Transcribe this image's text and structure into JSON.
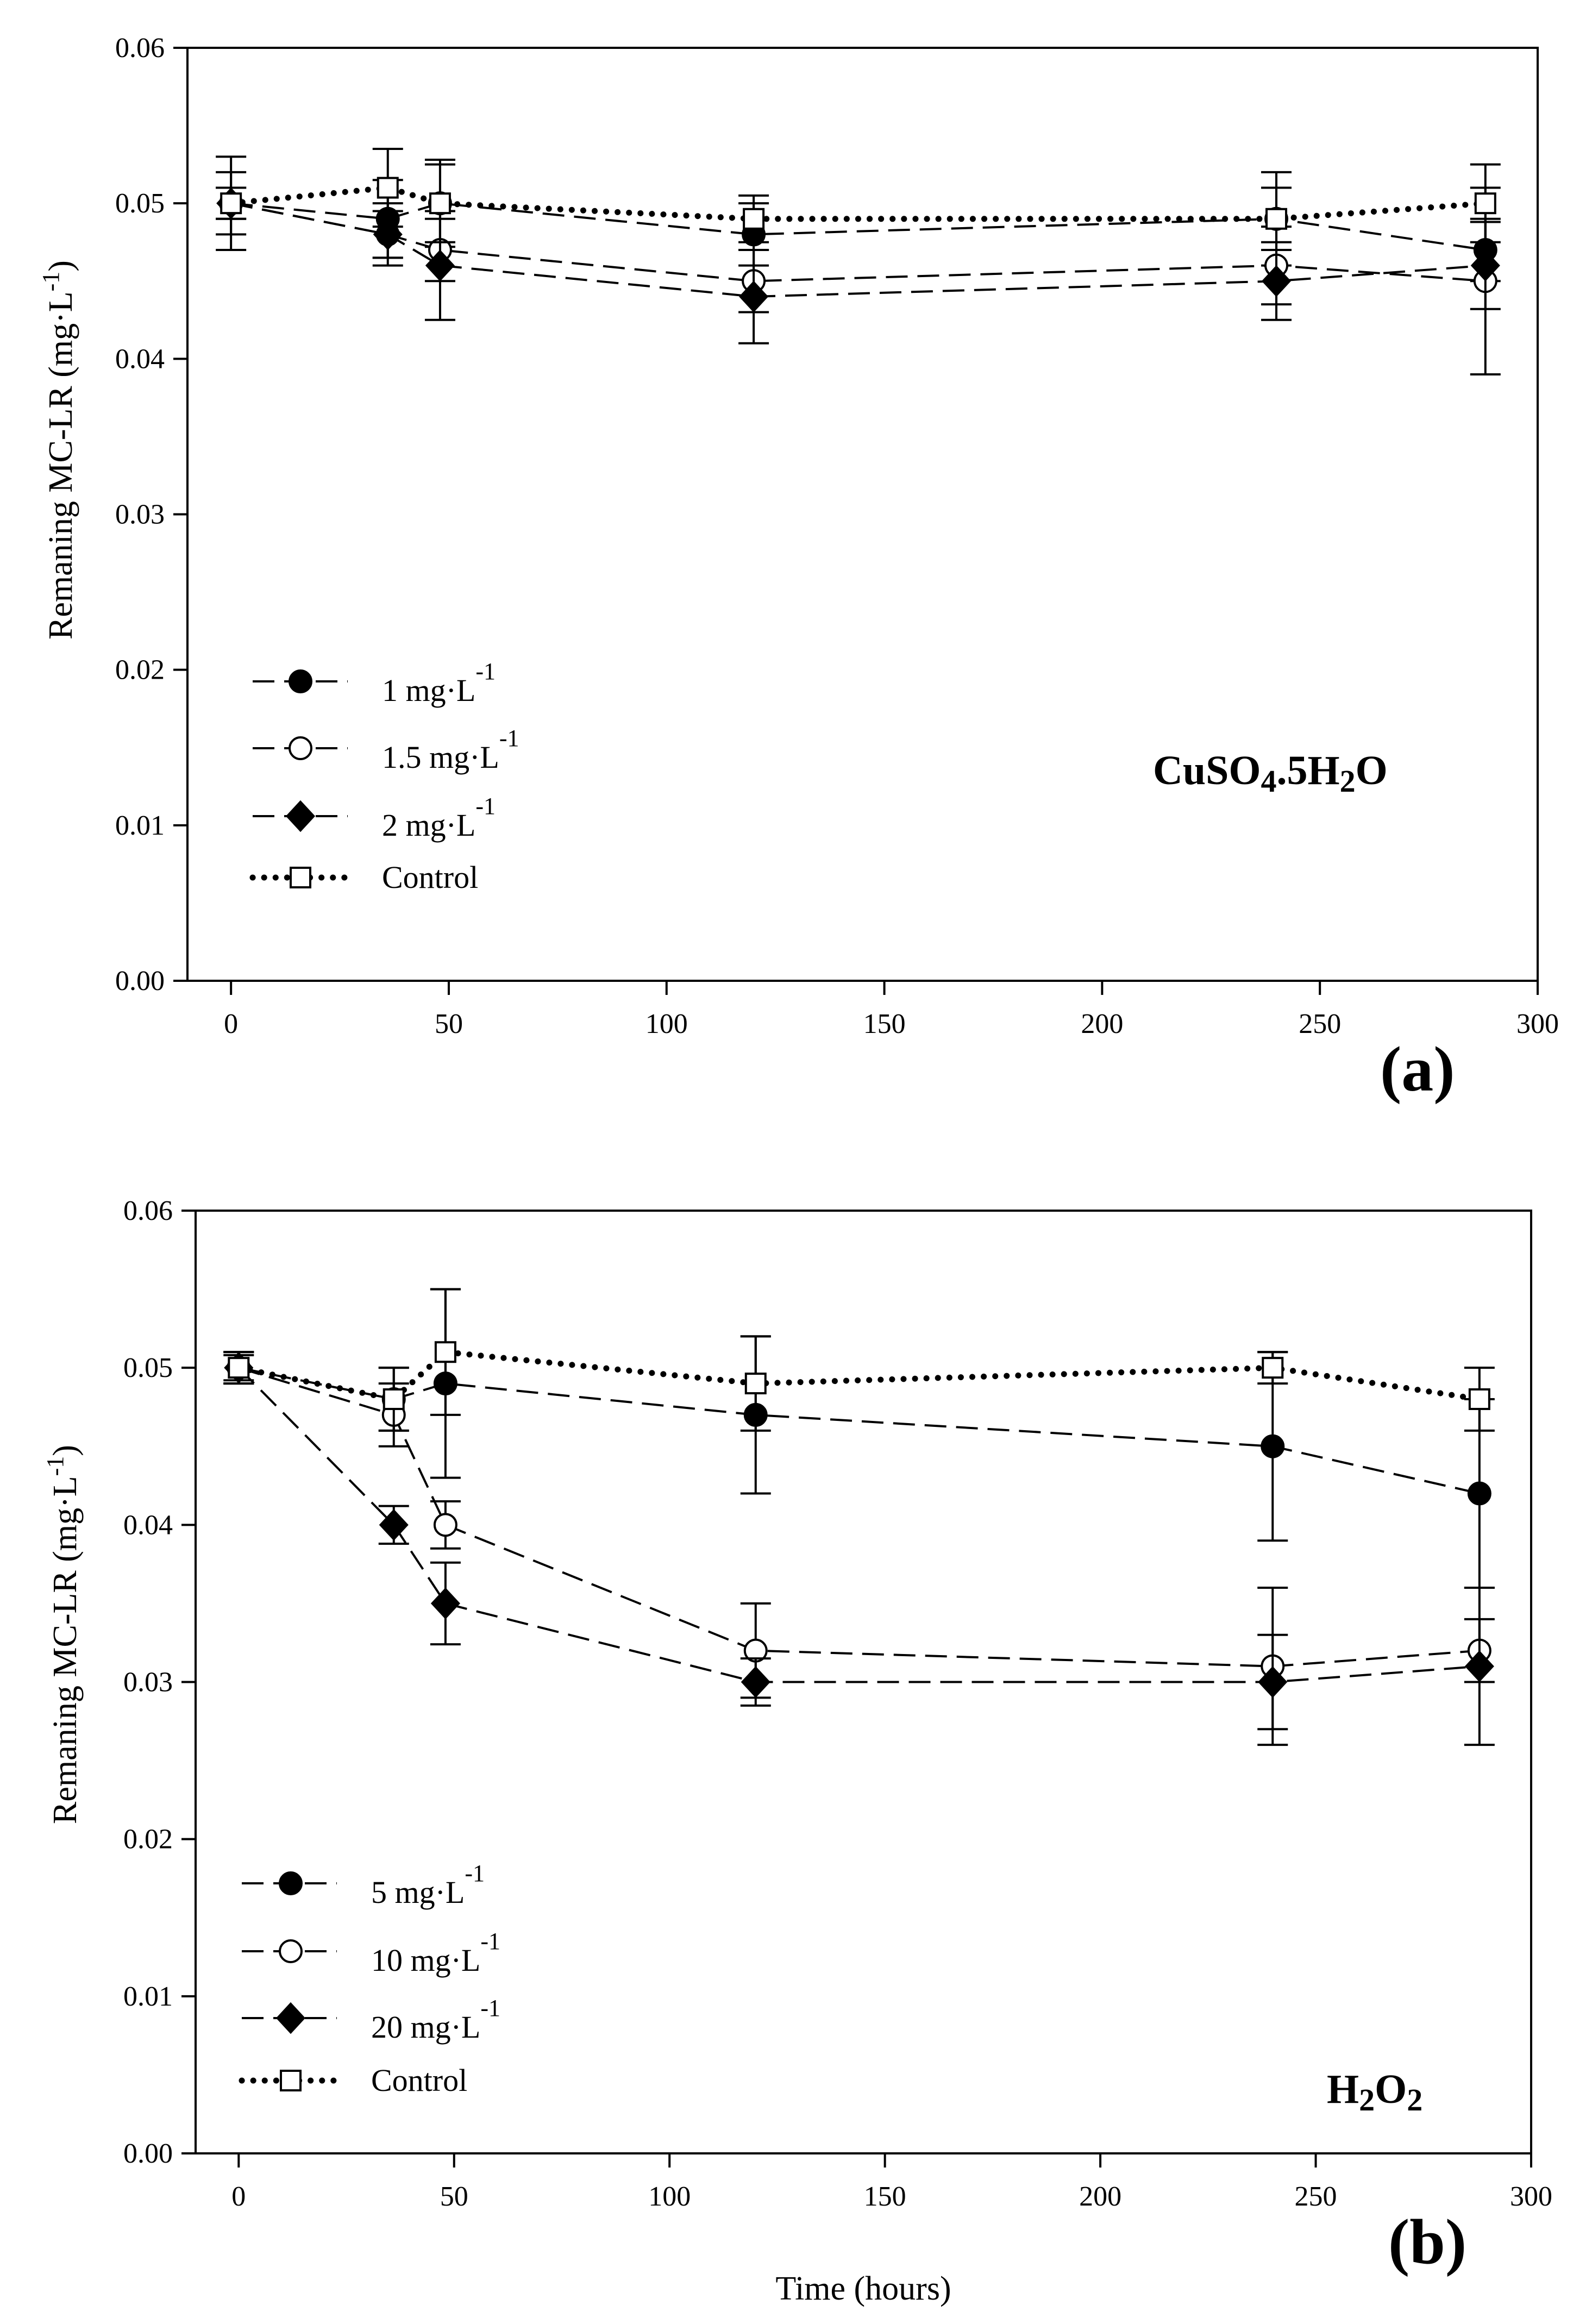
{
  "chart_data": [
    {
      "type": "line",
      "panel_label": "(a)",
      "annotation": {
        "base": "CuSO",
        "sub1": "4",
        "mid": ".5H",
        "sub2": "2",
        "end": "O"
      },
      "ylabel": {
        "base": "Remaning MC-LR (mg·L",
        "sup": "-1",
        "end": ")"
      },
      "xlabel": "",
      "xlim": [
        -10,
        300
      ],
      "ylim": [
        0,
        0.06
      ],
      "xticks": [
        0,
        50,
        100,
        150,
        200,
        250,
        300
      ],
      "xtick_labels": [
        "0",
        "50",
        "100",
        "150",
        "200",
        "250",
        "300"
      ],
      "yticks": [
        0,
        0.01,
        0.02,
        0.03,
        0.04,
        0.05,
        0.06
      ],
      "ytick_labels": [
        "0.00",
        "0.01",
        "0.02",
        "0.03",
        "0.04",
        "0.05",
        "0.06"
      ],
      "x": [
        0,
        36,
        48,
        120,
        240,
        288
      ],
      "series": [
        {
          "name": "1 mg·L",
          "sup": "-1",
          "marker": "circle-filled",
          "line": "dashed",
          "values": [
            0.05,
            0.049,
            0.05,
            0.048,
            0.049,
            0.047
          ],
          "errors": [
            0.003,
            0.0025,
            0.0028,
            0.002,
            0.003,
            0.002
          ]
        },
        {
          "name": "1.5 mg·L",
          "sup": "-1",
          "marker": "circle-open",
          "line": "dashed",
          "values": [
            0.05,
            0.048,
            0.047,
            0.045,
            0.046,
            0.045
          ],
          "errors": [
            0.002,
            0.0015,
            0.002,
            0.002,
            0.0025,
            0.006
          ]
        },
        {
          "name": "2 mg·L",
          "sup": "-1",
          "marker": "diamond-filled",
          "line": "dashed",
          "values": [
            0.05,
            0.048,
            0.046,
            0.044,
            0.045,
            0.046
          ],
          "errors": [
            0.001,
            0.002,
            0.0035,
            0.003,
            0.0025,
            0.0028
          ]
        },
        {
          "name": "Control",
          "sup": "",
          "marker": "square-open",
          "line": "dotted",
          "values": [
            0.05,
            0.051,
            0.05,
            0.049,
            0.049,
            0.05
          ],
          "errors": [
            0.001,
            0.0025,
            0.0025,
            0.0015,
            0.002,
            0.0025
          ]
        }
      ]
    },
    {
      "type": "line",
      "panel_label": "(b)",
      "annotation": {
        "base": "H",
        "sub1": "2",
        "mid": "O",
        "sub2": "2",
        "end": ""
      },
      "ylabel": {
        "base": "Remaning MC-LR (mg·L",
        "sup": "-1",
        "end": ")"
      },
      "xlabel": "Time (hours)",
      "xlim": [
        -10,
        300
      ],
      "ylim": [
        0,
        0.06
      ],
      "xticks": [
        0,
        50,
        100,
        150,
        200,
        250,
        300
      ],
      "xtick_labels": [
        "0",
        "50",
        "100",
        "150",
        "200",
        "250",
        "300"
      ],
      "yticks": [
        0,
        0.01,
        0.02,
        0.03,
        0.04,
        0.05,
        0.06
      ],
      "ytick_labels": [
        "0.00",
        "0.01",
        "0.02",
        "0.03",
        "0.04",
        "0.05",
        "0.06"
      ],
      "x": [
        0,
        36,
        48,
        120,
        240,
        288
      ],
      "series": [
        {
          "name": "5 mg·L",
          "sup": "-1",
          "marker": "circle-filled",
          "line": "dashed",
          "values": [
            0.05,
            0.048,
            0.049,
            0.047,
            0.045,
            0.042
          ],
          "errors": [
            0.001,
            0.002,
            0.006,
            0.005,
            0.006,
            0.006
          ]
        },
        {
          "name": "10 mg·L",
          "sup": "-1",
          "marker": "circle-open",
          "line": "dashed",
          "values": [
            0.05,
            0.047,
            0.04,
            0.032,
            0.031,
            0.032
          ],
          "errors": [
            0.001,
            0.002,
            0.0015,
            0.003,
            0.005,
            0.002
          ]
        },
        {
          "name": "20 mg·L",
          "sup": "-1",
          "marker": "diamond-filled",
          "line": "dashed",
          "values": [
            0.05,
            0.04,
            0.035,
            0.03,
            0.03,
            0.031
          ],
          "errors": [
            0.001,
            0.0012,
            0.0026,
            0.0015,
            0.003,
            0.005
          ]
        },
        {
          "name": "Control",
          "sup": "",
          "marker": "square-open",
          "line": "dotted",
          "values": [
            0.05,
            0.048,
            0.051,
            0.049,
            0.05,
            0.048
          ],
          "errors": [
            0.0008,
            0.002,
            0.004,
            0.003,
            0.001,
            0.002
          ]
        }
      ]
    }
  ]
}
